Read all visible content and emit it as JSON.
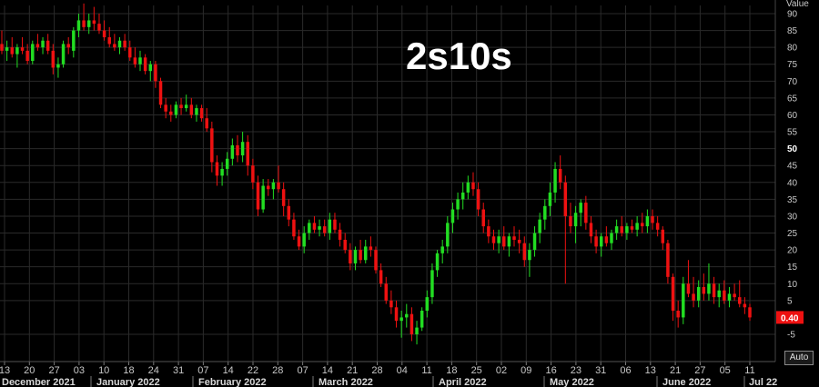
{
  "colors": {
    "up": "#22dd22",
    "down": "#ee1111",
    "grid": "#2a2a2a",
    "background": "#000000",
    "last_value_bg": "#ee1111"
  },
  "controls": {
    "auto_label": "Auto"
  },
  "chart_data": {
    "type": "candlestick",
    "title": "2s10s",
    "ylabel": "Value",
    "ylim": [
      -10,
      92
    ],
    "y_ticks": [
      90,
      85,
      80,
      75,
      70,
      65,
      60,
      55,
      50,
      45,
      40,
      35,
      30,
      25,
      20,
      15,
      10,
      5,
      -5
    ],
    "last_value": "0.40",
    "x_ticks": [
      "13",
      "20",
      "27",
      "03",
      "10",
      "18",
      "24",
      "31",
      "07",
      "14",
      "22",
      "28",
      "07",
      "14",
      "21",
      "28",
      "04",
      "11",
      "18",
      "25",
      "02",
      "09",
      "16",
      "23",
      "31",
      "06",
      "13",
      "21",
      "27",
      "05",
      "11"
    ],
    "x_months": [
      "December 2021",
      "January 2022",
      "February 2022",
      "March 2022",
      "April 2022",
      "May 2022",
      "June 2022",
      "Jul 22"
    ],
    "candles": [
      {
        "o": 81,
        "h": 85,
        "l": 78,
        "c": 79
      },
      {
        "o": 79,
        "h": 82,
        "l": 76,
        "c": 80
      },
      {
        "o": 80,
        "h": 83,
        "l": 77,
        "c": 78
      },
      {
        "o": 78,
        "h": 81,
        "l": 74,
        "c": 80
      },
      {
        "o": 80,
        "h": 83,
        "l": 78,
        "c": 79
      },
      {
        "o": 79,
        "h": 81,
        "l": 75,
        "c": 76
      },
      {
        "o": 76,
        "h": 82,
        "l": 75,
        "c": 81
      },
      {
        "o": 81,
        "h": 84,
        "l": 79,
        "c": 80
      },
      {
        "o": 80,
        "h": 83,
        "l": 78,
        "c": 82
      },
      {
        "o": 82,
        "h": 84,
        "l": 78,
        "c": 79
      },
      {
        "o": 79,
        "h": 81,
        "l": 72,
        "c": 74
      },
      {
        "o": 74,
        "h": 77,
        "l": 71,
        "c": 75
      },
      {
        "o": 75,
        "h": 82,
        "l": 74,
        "c": 81
      },
      {
        "o": 81,
        "h": 83,
        "l": 78,
        "c": 80
      },
      {
        "o": 79,
        "h": 86,
        "l": 77,
        "c": 85
      },
      {
        "o": 85,
        "h": 90,
        "l": 83,
        "c": 88
      },
      {
        "o": 88,
        "h": 93,
        "l": 85,
        "c": 86
      },
      {
        "o": 86,
        "h": 90,
        "l": 84,
        "c": 88
      },
      {
        "o": 88,
        "h": 92,
        "l": 85,
        "c": 87
      },
      {
        "o": 87,
        "h": 90,
        "l": 84,
        "c": 85
      },
      {
        "o": 85,
        "h": 88,
        "l": 82,
        "c": 83
      },
      {
        "o": 83,
        "h": 86,
        "l": 80,
        "c": 81
      },
      {
        "o": 81,
        "h": 84,
        "l": 79,
        "c": 80
      },
      {
        "o": 80,
        "h": 83,
        "l": 78,
        "c": 82
      },
      {
        "o": 82,
        "h": 84,
        "l": 79,
        "c": 80
      },
      {
        "o": 80,
        "h": 82,
        "l": 76,
        "c": 77
      },
      {
        "o": 77,
        "h": 80,
        "l": 74,
        "c": 75
      },
      {
        "o": 75,
        "h": 79,
        "l": 73,
        "c": 77
      },
      {
        "o": 77,
        "h": 78,
        "l": 72,
        "c": 73
      },
      {
        "o": 73,
        "h": 76,
        "l": 70,
        "c": 75
      },
      {
        "o": 75,
        "h": 76,
        "l": 68,
        "c": 70
      },
      {
        "o": 70,
        "h": 71,
        "l": 62,
        "c": 63
      },
      {
        "o": 63,
        "h": 65,
        "l": 59,
        "c": 61
      },
      {
        "o": 61,
        "h": 63,
        "l": 58,
        "c": 60
      },
      {
        "o": 60,
        "h": 64,
        "l": 59,
        "c": 63
      },
      {
        "o": 63,
        "h": 65,
        "l": 60,
        "c": 62
      },
      {
        "o": 62,
        "h": 66,
        "l": 61,
        "c": 63
      },
      {
        "o": 63,
        "h": 65,
        "l": 59,
        "c": 60
      },
      {
        "o": 60,
        "h": 63,
        "l": 58,
        "c": 62
      },
      {
        "o": 62,
        "h": 63,
        "l": 58,
        "c": 59
      },
      {
        "o": 59,
        "h": 62,
        "l": 55,
        "c": 56
      },
      {
        "o": 56,
        "h": 58,
        "l": 43,
        "c": 46
      },
      {
        "o": 46,
        "h": 48,
        "l": 39,
        "c": 42
      },
      {
        "o": 42,
        "h": 46,
        "l": 39,
        "c": 44
      },
      {
        "o": 44,
        "h": 49,
        "l": 42,
        "c": 47
      },
      {
        "o": 47,
        "h": 53,
        "l": 45,
        "c": 51
      },
      {
        "o": 51,
        "h": 54,
        "l": 46,
        "c": 48
      },
      {
        "o": 48,
        "h": 55,
        "l": 46,
        "c": 52
      },
      {
        "o": 52,
        "h": 54,
        "l": 42,
        "c": 45
      },
      {
        "o": 45,
        "h": 47,
        "l": 38,
        "c": 40
      },
      {
        "o": 40,
        "h": 42,
        "l": 30,
        "c": 32
      },
      {
        "o": 32,
        "h": 41,
        "l": 31,
        "c": 39
      },
      {
        "o": 39,
        "h": 41,
        "l": 36,
        "c": 38
      },
      {
        "o": 38,
        "h": 41,
        "l": 35,
        "c": 40
      },
      {
        "o": 40,
        "h": 45,
        "l": 37,
        "c": 38
      },
      {
        "o": 38,
        "h": 40,
        "l": 30,
        "c": 33
      },
      {
        "o": 33,
        "h": 35,
        "l": 27,
        "c": 29
      },
      {
        "o": 29,
        "h": 31,
        "l": 23,
        "c": 24
      },
      {
        "o": 24,
        "h": 26,
        "l": 20,
        "c": 21
      },
      {
        "o": 21,
        "h": 27,
        "l": 19,
        "c": 25
      },
      {
        "o": 25,
        "h": 29,
        "l": 23,
        "c": 28
      },
      {
        "o": 28,
        "h": 30,
        "l": 25,
        "c": 26
      },
      {
        "o": 26,
        "h": 29,
        "l": 24,
        "c": 27
      },
      {
        "o": 27,
        "h": 29,
        "l": 24,
        "c": 25
      },
      {
        "o": 25,
        "h": 31,
        "l": 23,
        "c": 29
      },
      {
        "o": 29,
        "h": 31,
        "l": 25,
        "c": 26
      },
      {
        "o": 26,
        "h": 28,
        "l": 21,
        "c": 23
      },
      {
        "o": 23,
        "h": 25,
        "l": 19,
        "c": 20
      },
      {
        "o": 20,
        "h": 22,
        "l": 14,
        "c": 16
      },
      {
        "o": 16,
        "h": 21,
        "l": 14,
        "c": 20
      },
      {
        "o": 20,
        "h": 23,
        "l": 16,
        "c": 17
      },
      {
        "o": 17,
        "h": 23,
        "l": 16,
        "c": 21
      },
      {
        "o": 21,
        "h": 24,
        "l": 18,
        "c": 20
      },
      {
        "o": 20,
        "h": 21,
        "l": 13,
        "c": 14
      },
      {
        "o": 14,
        "h": 16,
        "l": 9,
        "c": 10
      },
      {
        "o": 10,
        "h": 12,
        "l": 4,
        "c": 5
      },
      {
        "o": 5,
        "h": 8,
        "l": 1,
        "c": 3
      },
      {
        "o": 3,
        "h": 5,
        "l": -3,
        "c": -1
      },
      {
        "o": -1,
        "h": 2,
        "l": -6,
        "c": 0
      },
      {
        "o": 0,
        "h": 4,
        "l": -3,
        "c": 1
      },
      {
        "o": 1,
        "h": 3,
        "l": -7,
        "c": -5
      },
      {
        "o": -5,
        "h": -1,
        "l": -8,
        "c": -3
      },
      {
        "o": -3,
        "h": 3,
        "l": -4,
        "c": 2
      },
      {
        "o": 2,
        "h": 8,
        "l": 0,
        "c": 6
      },
      {
        "o": 6,
        "h": 16,
        "l": 4,
        "c": 14
      },
      {
        "o": 14,
        "h": 20,
        "l": 12,
        "c": 19
      },
      {
        "o": 19,
        "h": 23,
        "l": 16,
        "c": 21
      },
      {
        "o": 21,
        "h": 30,
        "l": 19,
        "c": 28
      },
      {
        "o": 28,
        "h": 34,
        "l": 25,
        "c": 32
      },
      {
        "o": 32,
        "h": 37,
        "l": 29,
        "c": 35
      },
      {
        "o": 35,
        "h": 40,
        "l": 32,
        "c": 37
      },
      {
        "o": 37,
        "h": 42,
        "l": 35,
        "c": 40
      },
      {
        "o": 40,
        "h": 43,
        "l": 36,
        "c": 38
      },
      {
        "o": 38,
        "h": 40,
        "l": 30,
        "c": 32
      },
      {
        "o": 32,
        "h": 34,
        "l": 25,
        "c": 27
      },
      {
        "o": 27,
        "h": 29,
        "l": 22,
        "c": 24
      },
      {
        "o": 24,
        "h": 26,
        "l": 20,
        "c": 22
      },
      {
        "o": 22,
        "h": 26,
        "l": 19,
        "c": 24
      },
      {
        "o": 24,
        "h": 27,
        "l": 20,
        "c": 21
      },
      {
        "o": 21,
        "h": 25,
        "l": 18,
        "c": 24
      },
      {
        "o": 24,
        "h": 27,
        "l": 21,
        "c": 23
      },
      {
        "o": 23,
        "h": 26,
        "l": 19,
        "c": 22
      },
      {
        "o": 22,
        "h": 24,
        "l": 15,
        "c": 17
      },
      {
        "o": 17,
        "h": 22,
        "l": 12,
        "c": 20
      },
      {
        "o": 20,
        "h": 27,
        "l": 18,
        "c": 25
      },
      {
        "o": 25,
        "h": 31,
        "l": 22,
        "c": 29
      },
      {
        "o": 29,
        "h": 35,
        "l": 26,
        "c": 33
      },
      {
        "o": 33,
        "h": 40,
        "l": 30,
        "c": 37
      },
      {
        "o": 37,
        "h": 46,
        "l": 34,
        "c": 44
      },
      {
        "o": 44,
        "h": 48,
        "l": 38,
        "c": 40
      },
      {
        "o": 40,
        "h": 42,
        "l": 10,
        "c": 30
      },
      {
        "o": 30,
        "h": 34,
        "l": 25,
        "c": 27
      },
      {
        "o": 27,
        "h": 33,
        "l": 22,
        "c": 31
      },
      {
        "o": 31,
        "h": 35,
        "l": 27,
        "c": 34
      },
      {
        "o": 34,
        "h": 36,
        "l": 26,
        "c": 28
      },
      {
        "o": 28,
        "h": 30,
        "l": 22,
        "c": 24
      },
      {
        "o": 24,
        "h": 26,
        "l": 19,
        "c": 21
      },
      {
        "o": 21,
        "h": 25,
        "l": 18,
        "c": 24
      },
      {
        "o": 24,
        "h": 27,
        "l": 21,
        "c": 22
      },
      {
        "o": 22,
        "h": 26,
        "l": 20,
        "c": 25
      },
      {
        "o": 25,
        "h": 29,
        "l": 23,
        "c": 27
      },
      {
        "o": 27,
        "h": 30,
        "l": 24,
        "c": 25
      },
      {
        "o": 25,
        "h": 28,
        "l": 23,
        "c": 27
      },
      {
        "o": 27,
        "h": 29,
        "l": 25,
        "c": 26
      },
      {
        "o": 26,
        "h": 30,
        "l": 24,
        "c": 28
      },
      {
        "o": 28,
        "h": 31,
        "l": 25,
        "c": 27
      },
      {
        "o": 27,
        "h": 32,
        "l": 25,
        "c": 30
      },
      {
        "o": 30,
        "h": 32,
        "l": 26,
        "c": 28
      },
      {
        "o": 28,
        "h": 30,
        "l": 24,
        "c": 26
      },
      {
        "o": 26,
        "h": 27,
        "l": 20,
        "c": 22
      },
      {
        "o": 22,
        "h": 23,
        "l": 10,
        "c": 12
      },
      {
        "o": 12,
        "h": 13,
        "l": -1,
        "c": 2
      },
      {
        "o": 2,
        "h": 5,
        "l": -3,
        "c": 0
      },
      {
        "o": 0,
        "h": 12,
        "l": -2,
        "c": 10
      },
      {
        "o": 10,
        "h": 17,
        "l": 6,
        "c": 7
      },
      {
        "o": 7,
        "h": 12,
        "l": 3,
        "c": 5
      },
      {
        "o": 5,
        "h": 11,
        "l": 3,
        "c": 9
      },
      {
        "o": 9,
        "h": 13,
        "l": 5,
        "c": 7
      },
      {
        "o": 7,
        "h": 16,
        "l": 5,
        "c": 10
      },
      {
        "o": 10,
        "h": 12,
        "l": 4,
        "c": 6
      },
      {
        "o": 6,
        "h": 10,
        "l": 3,
        "c": 8
      },
      {
        "o": 8,
        "h": 11,
        "l": 4,
        "c": 5
      },
      {
        "o": 5,
        "h": 9,
        "l": 3,
        "c": 7
      },
      {
        "o": 7,
        "h": 10,
        "l": 5,
        "c": 6
      },
      {
        "o": 6,
        "h": 11,
        "l": 3,
        "c": 4
      },
      {
        "o": 4,
        "h": 6,
        "l": 1,
        "c": 3
      },
      {
        "o": 3,
        "h": 4,
        "l": -1,
        "c": 0
      }
    ]
  }
}
